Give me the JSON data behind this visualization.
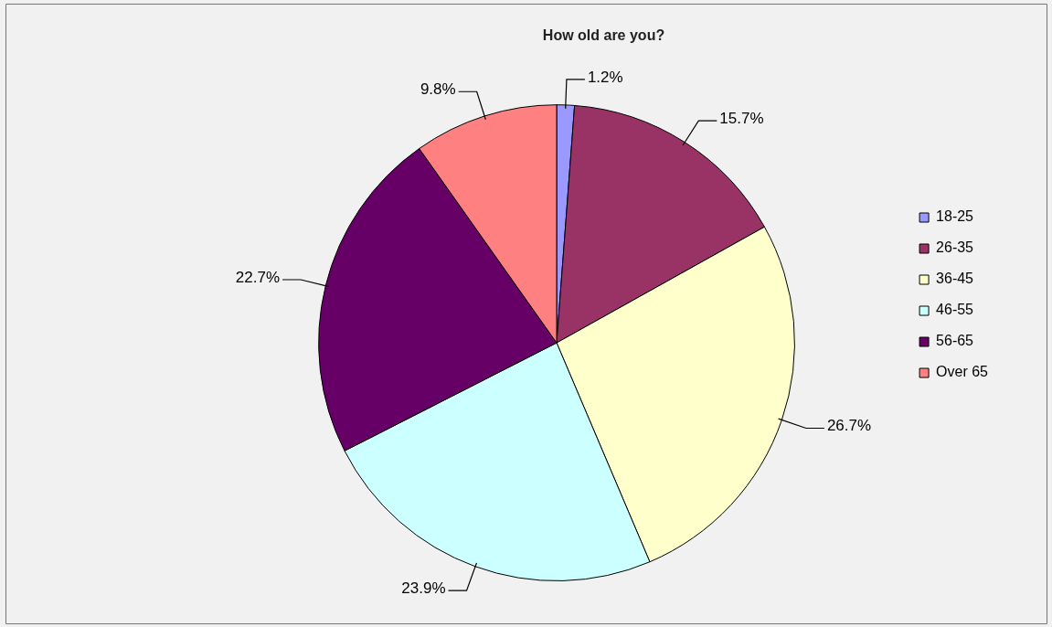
{
  "chart_data": {
    "type": "pie",
    "title": "How old are you?",
    "categories": [
      "18-25",
      "26-35",
      "36-45",
      "46-55",
      "56-65",
      "Over 65"
    ],
    "values": [
      1.2,
      15.7,
      26.7,
      23.9,
      22.7,
      9.8
    ],
    "colors": [
      "#9999ff",
      "#993366",
      "#ffffcc",
      "#ccffff",
      "#660066",
      "#ff8080"
    ],
    "value_labels": [
      "1.2%",
      "15.7%",
      "26.7%",
      "23.9%",
      "22.7%",
      "9.8%"
    ],
    "legend": "right"
  }
}
